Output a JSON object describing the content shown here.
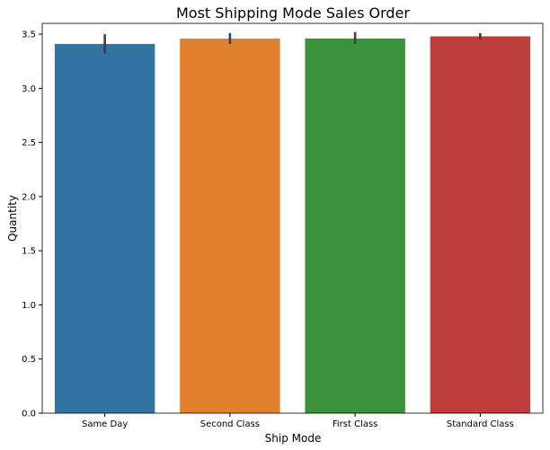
{
  "chart_data": {
    "type": "bar",
    "title": "Most Shipping Mode Sales Order",
    "xlabel": "Ship Mode",
    "ylabel": "Quantity",
    "categories": [
      "Same Day",
      "Second Class",
      "First Class",
      "Standard Class"
    ],
    "values": [
      3.41,
      3.46,
      3.46,
      3.48
    ],
    "error_low": [
      3.32,
      3.41,
      3.41,
      3.45
    ],
    "error_high": [
      3.5,
      3.51,
      3.52,
      3.51
    ],
    "colors": [
      "#3274a1",
      "#e1812c",
      "#3a923a",
      "#c03d3e"
    ],
    "ylim": [
      0,
      3.6
    ],
    "yticks": [
      "0.0",
      "0.5",
      "1.0",
      "1.5",
      "2.0",
      "2.5",
      "3.0",
      "3.5"
    ],
    "grid": false,
    "legend": "none"
  }
}
